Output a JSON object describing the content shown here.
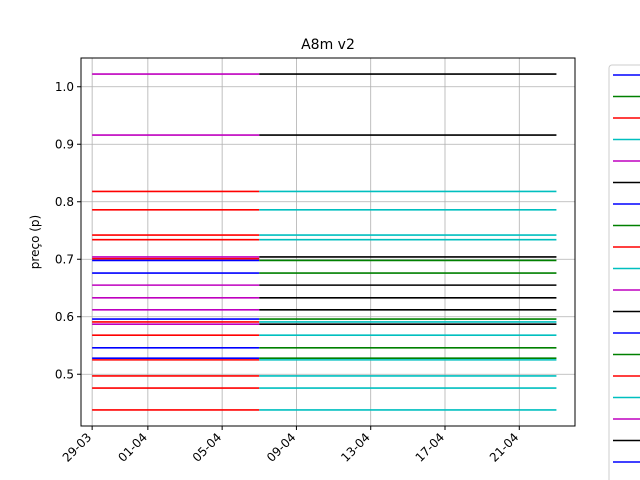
{
  "chart_data": {
    "type": "line",
    "title": "A8m v2",
    "xlabel": "",
    "ylabel": "preço (p)",
    "x_ticks": [
      "29-03",
      "01-04",
      "05-04",
      "09-04",
      "13-04",
      "17-04",
      "21-04"
    ],
    "y_ticks": [
      "0.5",
      "0.6",
      "0.7",
      "0.8",
      "0.9",
      "1.0"
    ],
    "ylim": [
      0.41,
      1.05
    ],
    "grid": true,
    "legend_placement": "right-outside",
    "segments": [
      {
        "x": [
          "29-03",
          "07-04"
        ],
        "y": 1.022,
        "color": "#bf00bf"
      },
      {
        "x": [
          "29-03",
          "07-04"
        ],
        "y": 0.916,
        "color": "#bf00bf"
      },
      {
        "x": [
          "29-03",
          "07-04"
        ],
        "y": 0.818,
        "color": "#ff0000"
      },
      {
        "x": [
          "29-03",
          "07-04"
        ],
        "y": 0.786,
        "color": "#ff0000"
      },
      {
        "x": [
          "29-03",
          "07-04"
        ],
        "y": 0.742,
        "color": "#ff0000"
      },
      {
        "x": [
          "29-03",
          "07-04"
        ],
        "y": 0.734,
        "color": "#ff0000"
      },
      {
        "x": [
          "29-03",
          "07-04"
        ],
        "y": 0.704,
        "color": "#bf00bf"
      },
      {
        "x": [
          "29-03",
          "07-04"
        ],
        "y": 0.701,
        "color": "#ff0000"
      },
      {
        "x": [
          "29-03",
          "07-04"
        ],
        "y": 0.698,
        "color": "#0000ff"
      },
      {
        "x": [
          "29-03",
          "07-04"
        ],
        "y": 0.676,
        "color": "#0000ff"
      },
      {
        "x": [
          "29-03",
          "07-04"
        ],
        "y": 0.655,
        "color": "#bf00bf"
      },
      {
        "x": [
          "29-03",
          "07-04"
        ],
        "y": 0.633,
        "color": "#bf00bf"
      },
      {
        "x": [
          "29-03",
          "07-04"
        ],
        "y": 0.612,
        "color": "#bf00bf"
      },
      {
        "x": [
          "29-03",
          "07-04"
        ],
        "y": 0.596,
        "color": "#0000ff"
      },
      {
        "x": [
          "29-03",
          "07-04"
        ],
        "y": 0.591,
        "color": "#ff0000"
      },
      {
        "x": [
          "29-03",
          "07-04"
        ],
        "y": 0.587,
        "color": "#bf00bf"
      },
      {
        "x": [
          "29-03",
          "07-04"
        ],
        "y": 0.568,
        "color": "#ff0000"
      },
      {
        "x": [
          "29-03",
          "07-04"
        ],
        "y": 0.546,
        "color": "#0000ff"
      },
      {
        "x": [
          "29-03",
          "07-04"
        ],
        "y": 0.528,
        "color": "#0000ff"
      },
      {
        "x": [
          "29-03",
          "07-04"
        ],
        "y": 0.525,
        "color": "#ff0000"
      },
      {
        "x": [
          "29-03",
          "07-04"
        ],
        "y": 0.497,
        "color": "#ff0000"
      },
      {
        "x": [
          "29-03",
          "07-04"
        ],
        "y": 0.476,
        "color": "#ff0000"
      },
      {
        "x": [
          "29-03",
          "07-04"
        ],
        "y": 0.438,
        "color": "#ff0000"
      },
      {
        "x": [
          "07-04",
          "23-04"
        ],
        "y": 1.022,
        "color": "#000000"
      },
      {
        "x": [
          "07-04",
          "23-04"
        ],
        "y": 0.916,
        "color": "#000000"
      },
      {
        "x": [
          "07-04",
          "23-04"
        ],
        "y": 0.818,
        "color": "#00bfbf"
      },
      {
        "x": [
          "07-04",
          "23-04"
        ],
        "y": 0.786,
        "color": "#00bfbf"
      },
      {
        "x": [
          "07-04",
          "23-04"
        ],
        "y": 0.742,
        "color": "#00bfbf"
      },
      {
        "x": [
          "07-04",
          "23-04"
        ],
        "y": 0.734,
        "color": "#00bfbf"
      },
      {
        "x": [
          "07-04",
          "23-04"
        ],
        "y": 0.704,
        "color": "#000000"
      },
      {
        "x": [
          "07-04",
          "23-04"
        ],
        "y": 0.698,
        "color": "#008000"
      },
      {
        "x": [
          "07-04",
          "23-04"
        ],
        "y": 0.676,
        "color": "#008000"
      },
      {
        "x": [
          "07-04",
          "23-04"
        ],
        "y": 0.655,
        "color": "#000000"
      },
      {
        "x": [
          "07-04",
          "23-04"
        ],
        "y": 0.633,
        "color": "#000000"
      },
      {
        "x": [
          "07-04",
          "23-04"
        ],
        "y": 0.612,
        "color": "#000000"
      },
      {
        "x": [
          "07-04",
          "23-04"
        ],
        "y": 0.596,
        "color": "#008000"
      },
      {
        "x": [
          "07-04",
          "23-04"
        ],
        "y": 0.591,
        "color": "#00bfbf"
      },
      {
        "x": [
          "07-04",
          "23-04"
        ],
        "y": 0.587,
        "color": "#000000"
      },
      {
        "x": [
          "07-04",
          "23-04"
        ],
        "y": 0.568,
        "color": "#00bfbf"
      },
      {
        "x": [
          "07-04",
          "23-04"
        ],
        "y": 0.546,
        "color": "#008000"
      },
      {
        "x": [
          "07-04",
          "23-04"
        ],
        "y": 0.528,
        "color": "#008000"
      },
      {
        "x": [
          "07-04",
          "23-04"
        ],
        "y": 0.525,
        "color": "#00bfbf"
      },
      {
        "x": [
          "07-04",
          "23-04"
        ],
        "y": 0.497,
        "color": "#00bfbf"
      },
      {
        "x": [
          "07-04",
          "23-04"
        ],
        "y": 0.476,
        "color": "#00bfbf"
      },
      {
        "x": [
          "07-04",
          "23-04"
        ],
        "y": 0.438,
        "color": "#00bfbf"
      }
    ],
    "legend_colors": [
      "#0000ff",
      "#008000",
      "#ff0000",
      "#00bfbf",
      "#bf00bf",
      "#000000",
      "#0000ff",
      "#008000",
      "#ff0000",
      "#00bfbf",
      "#bf00bf",
      "#000000",
      "#0000ff",
      "#008000",
      "#ff0000",
      "#00bfbf",
      "#bf00bf",
      "#000000",
      "#0000ff",
      "#008000"
    ]
  }
}
